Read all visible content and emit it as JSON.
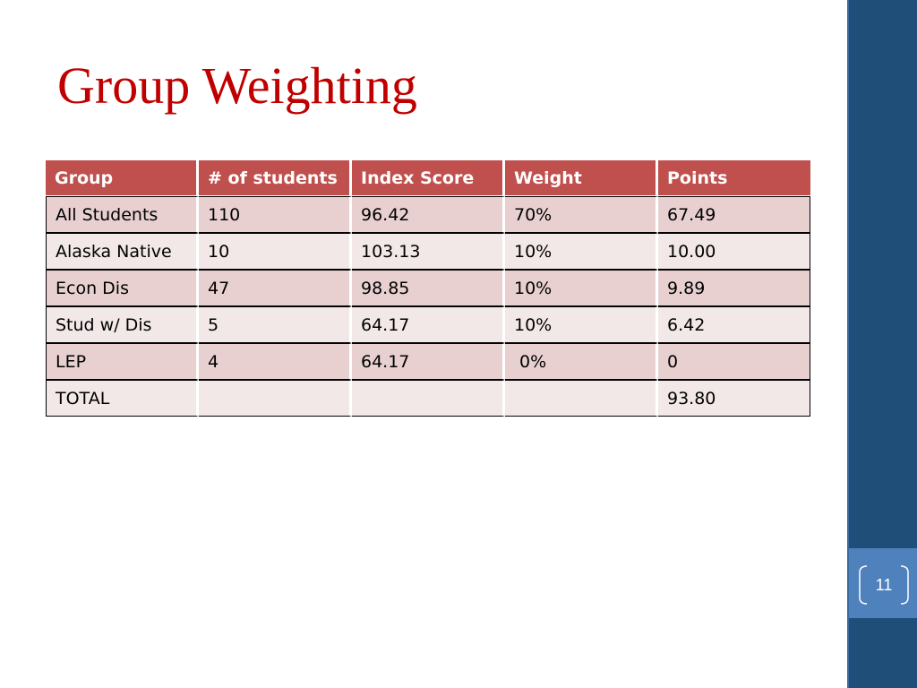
{
  "slide": {
    "title": "Group Weighting",
    "page_number": "11"
  },
  "table": {
    "headers": [
      "Group",
      "# of students",
      "Index Score",
      "Weight",
      "Points"
    ],
    "rows": [
      [
        "All Students",
        "110",
        "96.42",
        "70%",
        "67.49"
      ],
      [
        "Alaska Native",
        "10",
        "103.13",
        "10%",
        "10.00"
      ],
      [
        "Econ Dis",
        "47",
        "98.85",
        "10%",
        "9.89"
      ],
      [
        "Stud w/ Dis",
        "5",
        "64.17",
        "10%",
        "6.42"
      ],
      [
        "LEP",
        "4",
        "64.17",
        " 0%",
        "0"
      ],
      [
        "TOTAL",
        "",
        "",
        "",
        "93.80"
      ]
    ]
  },
  "colors": {
    "title": "#c00000",
    "header_bg": "#c0504d",
    "row_odd_bg": "#e8d0d0",
    "row_even_bg": "#f3e8e8",
    "side_bar": "#1f4e79",
    "page_block": "#4f81bd"
  }
}
